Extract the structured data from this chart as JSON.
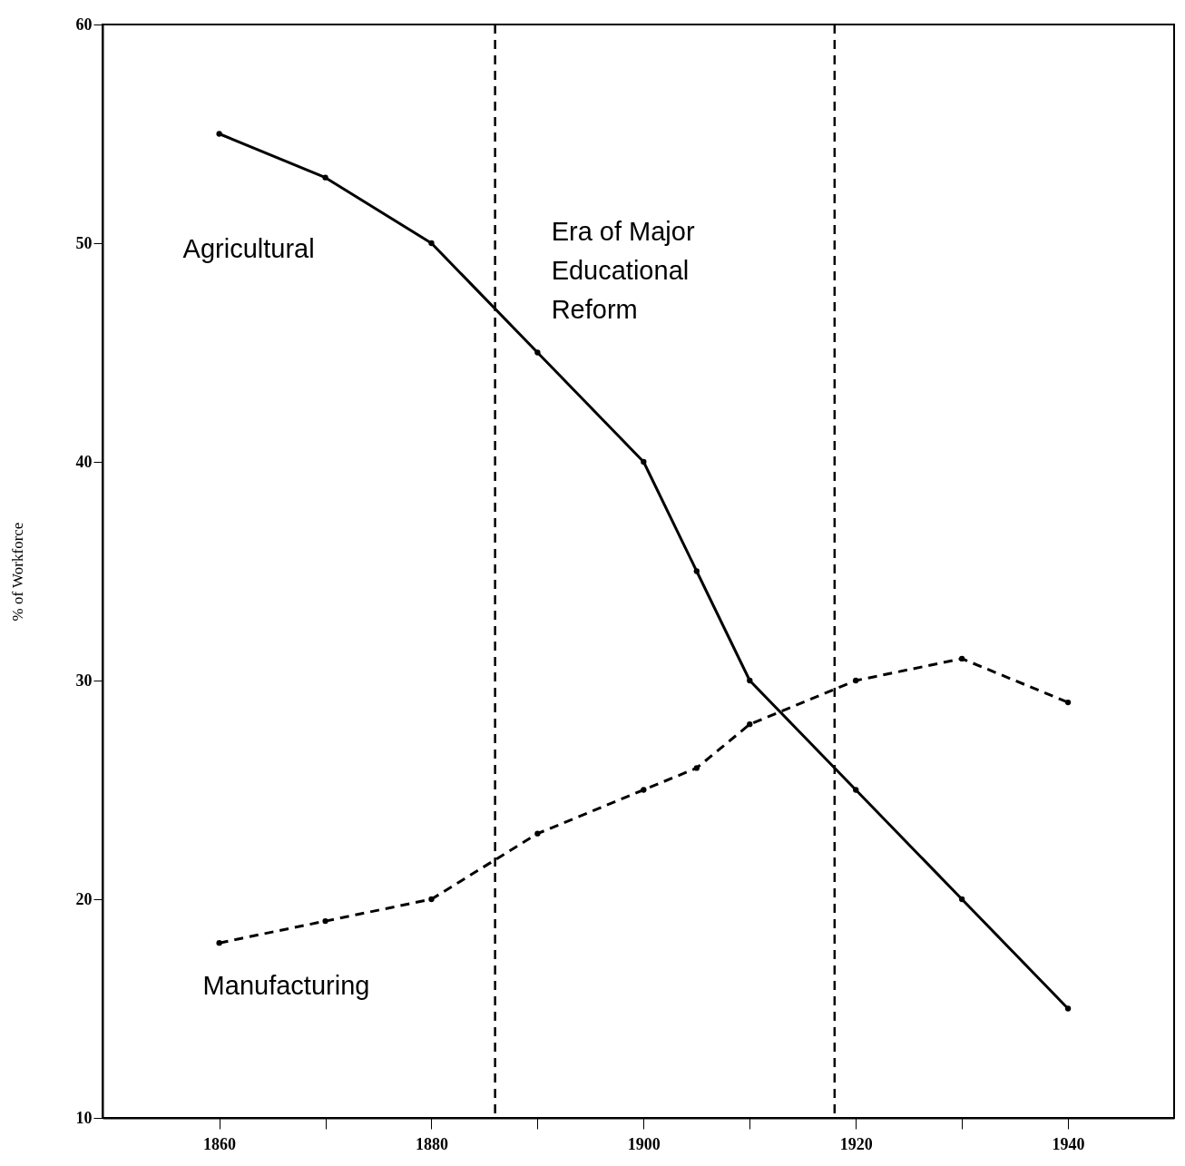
{
  "chart_data": {
    "type": "line",
    "ylabel": "% of Workforce",
    "x": [
      1860,
      1870,
      1880,
      1890,
      1900,
      1905,
      1910,
      1920,
      1930,
      1940
    ],
    "series": [
      {
        "name": "Agricultural",
        "color": "#000000",
        "line_style": "solid",
        "values": [
          55,
          53,
          50,
          45,
          40,
          35,
          30,
          25,
          20,
          15
        ]
      },
      {
        "name": "Manufacturing",
        "color": "#000000",
        "line_style": "dashed",
        "values": [
          18,
          19,
          20,
          23,
          25,
          26,
          28,
          30,
          31,
          29
        ]
      }
    ],
    "xlim": [
      1849,
      1950
    ],
    "xticks": [
      1860,
      {
        "value": 1870,
        "label": null
      },
      1880,
      {
        "value": 1890,
        "label": null
      },
      1900,
      {
        "value": 1910,
        "label": null
      },
      1920,
      {
        "value": 1930,
        "label": null
      },
      1940
    ],
    "ylim": [
      10,
      60
    ],
    "yticks": [
      10,
      20,
      30,
      40,
      50,
      60
    ],
    "ref_lines": [
      {
        "axis": "x",
        "value": 1886,
        "label": "Era of Major\nEducational\nReform",
        "line_style": "dashed",
        "color": "#000000"
      },
      {
        "axis": "x",
        "value": 1918,
        "line_style": "dashed",
        "color": "#000000"
      }
    ],
    "marker": "circle",
    "grid": false
  }
}
